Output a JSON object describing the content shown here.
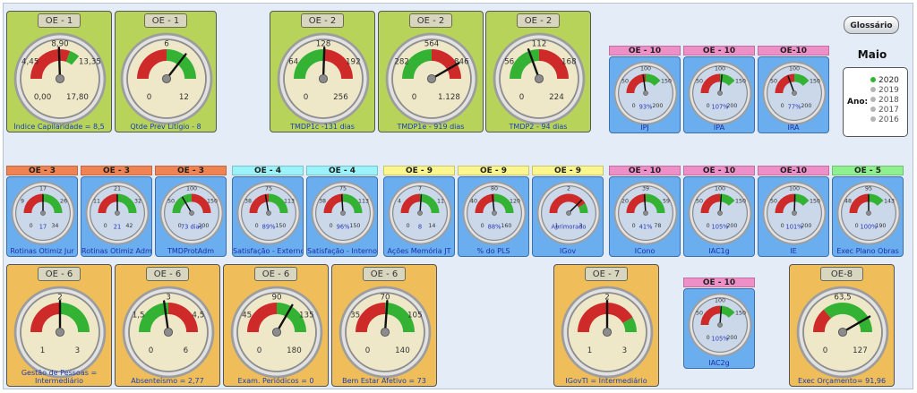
{
  "glossary_label": "Glossário",
  "month": "Maio",
  "year_label": "Ano:",
  "years": [
    "2020",
    "2019",
    "2018",
    "2017",
    "2016"
  ],
  "selected_year": "2020",
  "strip_colors": {
    "OE-10": "#ef8fc8",
    "OE-3": "#ef8353",
    "OE-4": "#9bf2f8",
    "OE-9": "#fbf78e",
    "OE-5": "#8ff08f"
  },
  "big_top": [
    {
      "oe": "OE - 1",
      "ticks": [
        "0,00",
        "4,45",
        "8,90",
        "13,35",
        "17,80"
      ],
      "label": "Índice Capilaridade = 8,5"
    },
    {
      "oe": "OE - 1",
      "ticks": [
        "0",
        "",
        "6",
        "",
        "12"
      ],
      "label": "Qtde Prev Litígio - 8"
    },
    {
      "oe": "OE - 2",
      "ticks": [
        "0",
        "64",
        "128",
        "192",
        "256"
      ],
      "label": "TMDP1c -131 dias"
    },
    {
      "oe": "OE - 2",
      "ticks": [
        "0",
        "282",
        "564",
        "846",
        "1.128"
      ],
      "label": "TMDP1e - 919 dias"
    },
    {
      "oe": "OE - 2",
      "ticks": [
        "0",
        "56",
        "112",
        "168",
        "224"
      ],
      "label": "TMDP2 - 94 dias"
    }
  ],
  "top_small": [
    {
      "oe": "OE - 10",
      "ticks": [
        "0",
        "50",
        "100",
        "150",
        "200"
      ],
      "pct": "93%",
      "label": "IPJ"
    },
    {
      "oe": "OE - 10",
      "ticks": [
        "0",
        "50",
        "100",
        "150",
        "200"
      ],
      "pct": "107%",
      "label": "IPA"
    },
    {
      "oe": "OE-10",
      "ticks": [
        "0",
        "50",
        "100",
        "150",
        "200"
      ],
      "pct": "77%",
      "label": "IRA"
    }
  ],
  "middle": [
    {
      "oe": "OE - 3",
      "ticks": [
        "0",
        "9",
        "17",
        "26",
        "34"
      ],
      "pct": "17",
      "label": "Rotinas Otimiz Jur"
    },
    {
      "oe": "OE - 3",
      "ticks": [
        "0",
        "11",
        "21",
        "32",
        "42"
      ],
      "pct": "21",
      "label": "Rotinas Otimiz Adm"
    },
    {
      "oe": "OE - 3",
      "ticks": [
        "0",
        "50",
        "100",
        "150",
        "200"
      ],
      "pct": "73 dias",
      "label": "TMDProtAdm"
    },
    {
      "oe": "OE - 4",
      "ticks": [
        "0",
        "38",
        "75",
        "113",
        "150"
      ],
      "pct": "89%",
      "label": "Satisfação - Externo"
    },
    {
      "oe": "OE - 4",
      "ticks": [
        "0",
        "38",
        "75",
        "113",
        "150"
      ],
      "pct": "96%",
      "label": "Satisfação - Interno"
    },
    {
      "oe": "OE - 9",
      "ticks": [
        "0",
        "4",
        "7",
        "11",
        "14"
      ],
      "pct": "8",
      "label": "Ações Memória JT"
    },
    {
      "oe": "OE - 9",
      "ticks": [
        "0",
        "40",
        "80",
        "120",
        "160"
      ],
      "pct": "88%",
      "label": "% do PLS"
    },
    {
      "oe": "OE - 9",
      "ticks": [
        "1",
        "",
        "2",
        "",
        "3"
      ],
      "pct": "Aprimorado",
      "label": "IGov"
    },
    {
      "oe": "OE - 10",
      "ticks": [
        "0",
        "20",
        "39",
        "59",
        "78"
      ],
      "pct": "41%",
      "label": "ICono"
    },
    {
      "oe": "OE - 10",
      "ticks": [
        "0",
        "50",
        "100",
        "150",
        "200"
      ],
      "pct": "105%",
      "label": "IAC1g"
    },
    {
      "oe": "OE-10",
      "ticks": [
        "0",
        "50",
        "100",
        "150",
        "200"
      ],
      "pct": "101%",
      "label": "IE"
    },
    {
      "oe": "OE - 5",
      "ticks": [
        "0",
        "48",
        "95",
        "143",
        "190"
      ],
      "pct": "100%",
      "label": "Exec Plano Obras"
    }
  ],
  "bottom": [
    {
      "oe": "OE - 6",
      "ticks": [
        "1",
        "",
        "2",
        "",
        "3"
      ],
      "label": "Gestão de Pessoas = Intermediário"
    },
    {
      "oe": "OE - 6",
      "ticks": [
        "0",
        "1,5",
        "3",
        "4,5",
        "6"
      ],
      "label": "Absenteísmo = 2,77"
    },
    {
      "oe": "OE - 6",
      "ticks": [
        "0",
        "45",
        "90",
        "135",
        "180"
      ],
      "label": "Exam. Periódicos = 0"
    },
    {
      "oe": "OE - 6",
      "ticks": [
        "0",
        "35",
        "70",
        "105",
        "140"
      ],
      "label": "Bem Estar Afetivo = 73"
    },
    {
      "oe": "OE - 7",
      "ticks": [
        "1",
        "",
        "2",
        "",
        "3"
      ],
      "label": "IGovTI = Intermediário"
    },
    {
      "oe": "OE-8",
      "ticks": [
        "0",
        "",
        "63,5",
        "",
        "127"
      ],
      "label": "Exec Orçamento= 91,96"
    }
  ],
  "iac2g": {
    "oe": "OE - 10",
    "ticks": [
      "0",
      "50",
      "100",
      "150",
      "200"
    ],
    "pct": "105%",
    "label": "IAC2g"
  }
}
